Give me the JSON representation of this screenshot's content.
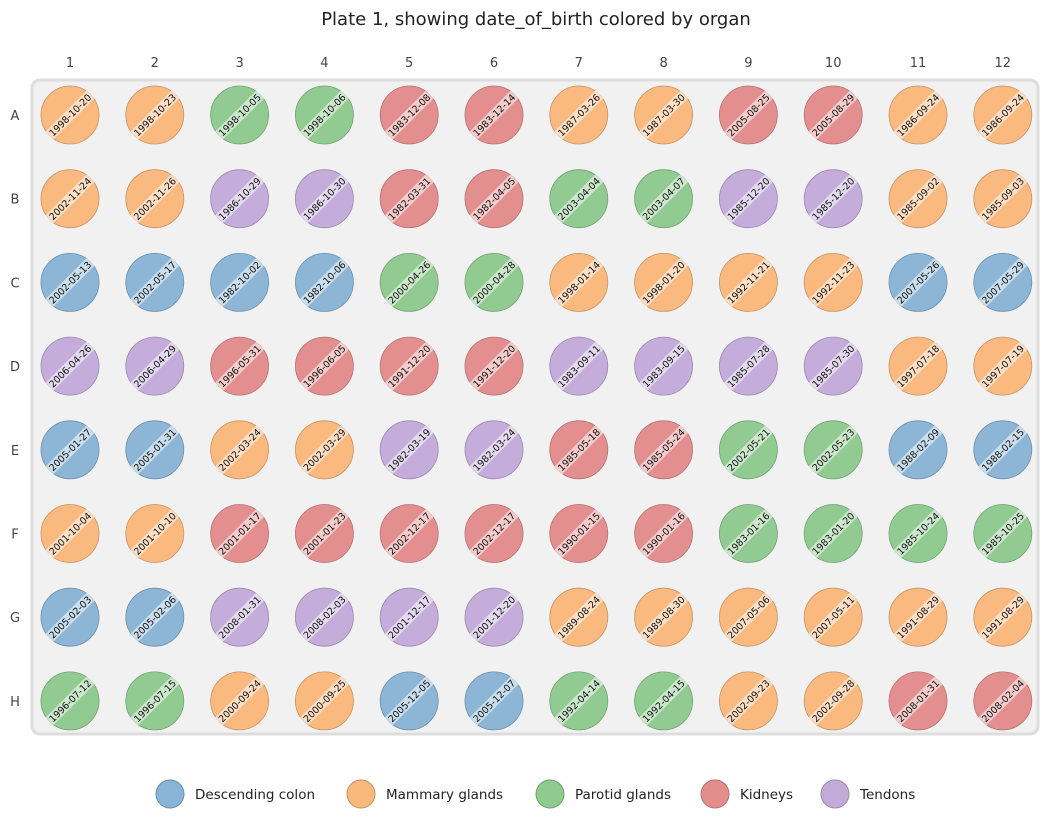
{
  "chart_data": {
    "type": "plate-map",
    "title": "Plate 1, showing date_of_birth colored by organ",
    "columns": [
      "1",
      "2",
      "3",
      "4",
      "5",
      "6",
      "7",
      "8",
      "9",
      "10",
      "11",
      "12"
    ],
    "rows": [
      "A",
      "B",
      "C",
      "D",
      "E",
      "F",
      "G",
      "H"
    ],
    "legend_placement": "bottom",
    "categories": [
      {
        "name": "Descending colon",
        "color": "#8ab4d5"
      },
      {
        "name": "Mammary glands",
        "color": "#f9b87c"
      },
      {
        "name": "Parotid glands",
        "color": "#8fca8f"
      },
      {
        "name": "Kidneys",
        "color": "#e38d8d"
      },
      {
        "name": "Tendons",
        "color": "#c3abd9"
      }
    ],
    "wells": [
      [
        [
          "Mammary glands",
          "1998-10-20"
        ],
        [
          "Mammary glands",
          "1998-10-23"
        ],
        [
          "Parotid glands",
          "1998-10-05"
        ],
        [
          "Parotid glands",
          "1998-10-06"
        ],
        [
          "Kidneys",
          "1983-12-08"
        ],
        [
          "Kidneys",
          "1983-12-14"
        ],
        [
          "Mammary glands",
          "1987-03-26"
        ],
        [
          "Mammary glands",
          "1987-03-30"
        ],
        [
          "Kidneys",
          "2005-08-25"
        ],
        [
          "Kidneys",
          "2005-08-29"
        ],
        [
          "Mammary glands",
          "1986-09-24"
        ],
        [
          "Mammary glands",
          "1986-09-24"
        ]
      ],
      [
        [
          "Mammary glands",
          "2002-11-24"
        ],
        [
          "Mammary glands",
          "2002-11-26"
        ],
        [
          "Tendons",
          "1986-10-29"
        ],
        [
          "Tendons",
          "1986-10-30"
        ],
        [
          "Kidneys",
          "1982-03-31"
        ],
        [
          "Kidneys",
          "1982-04-05"
        ],
        [
          "Parotid glands",
          "2003-04-04"
        ],
        [
          "Parotid glands",
          "2003-04-07"
        ],
        [
          "Tendons",
          "1985-12-20"
        ],
        [
          "Tendons",
          "1985-12-20"
        ],
        [
          "Mammary glands",
          "1985-09-02"
        ],
        [
          "Mammary glands",
          "1985-09-03"
        ]
      ],
      [
        [
          "Descending colon",
          "2002-05-13"
        ],
        [
          "Descending colon",
          "2002-05-17"
        ],
        [
          "Descending colon",
          "1982-10-02"
        ],
        [
          "Descending colon",
          "1982-10-06"
        ],
        [
          "Parotid glands",
          "2000-04-26"
        ],
        [
          "Parotid glands",
          "2000-04-28"
        ],
        [
          "Mammary glands",
          "1998-01-14"
        ],
        [
          "Mammary glands",
          "1998-01-20"
        ],
        [
          "Mammary glands",
          "1992-11-21"
        ],
        [
          "Mammary glands",
          "1992-11-23"
        ],
        [
          "Descending colon",
          "2007-05-26"
        ],
        [
          "Descending colon",
          "2007-05-29"
        ]
      ],
      [
        [
          "Tendons",
          "2006-04-26"
        ],
        [
          "Tendons",
          "2006-04-29"
        ],
        [
          "Kidneys",
          "1996-05-31"
        ],
        [
          "Kidneys",
          "1996-06-05"
        ],
        [
          "Kidneys",
          "1991-12-20"
        ],
        [
          "Kidneys",
          "1991-12-20"
        ],
        [
          "Tendons",
          "1983-09-11"
        ],
        [
          "Tendons",
          "1983-09-15"
        ],
        [
          "Tendons",
          "1985-07-28"
        ],
        [
          "Tendons",
          "1985-07-30"
        ],
        [
          "Mammary glands",
          "1997-07-18"
        ],
        [
          "Mammary glands",
          "1997-07-19"
        ]
      ],
      [
        [
          "Descending colon",
          "2005-01-27"
        ],
        [
          "Descending colon",
          "2005-01-31"
        ],
        [
          "Mammary glands",
          "2002-03-24"
        ],
        [
          "Mammary glands",
          "2002-03-29"
        ],
        [
          "Tendons",
          "1982-03-19"
        ],
        [
          "Tendons",
          "1982-03-24"
        ],
        [
          "Kidneys",
          "1985-05-18"
        ],
        [
          "Kidneys",
          "1985-05-24"
        ],
        [
          "Parotid glands",
          "2002-05-21"
        ],
        [
          "Parotid glands",
          "2002-05-23"
        ],
        [
          "Descending colon",
          "1988-02-09"
        ],
        [
          "Descending colon",
          "1988-02-15"
        ]
      ],
      [
        [
          "Mammary glands",
          "2001-10-04"
        ],
        [
          "Mammary glands",
          "2001-10-10"
        ],
        [
          "Kidneys",
          "2001-01-17"
        ],
        [
          "Kidneys",
          "2001-01-23"
        ],
        [
          "Kidneys",
          "2002-12-17"
        ],
        [
          "Kidneys",
          "2002-12-17"
        ],
        [
          "Kidneys",
          "1990-01-15"
        ],
        [
          "Kidneys",
          "1990-01-16"
        ],
        [
          "Parotid glands",
          "1983-01-16"
        ],
        [
          "Parotid glands",
          "1983-01-20"
        ],
        [
          "Parotid glands",
          "1985-10-24"
        ],
        [
          "Parotid glands",
          "1985-10-25"
        ]
      ],
      [
        [
          "Descending colon",
          "2005-02-03"
        ],
        [
          "Descending colon",
          "2005-02-06"
        ],
        [
          "Tendons",
          "2008-01-31"
        ],
        [
          "Tendons",
          "2008-02-03"
        ],
        [
          "Tendons",
          "2001-12-17"
        ],
        [
          "Tendons",
          "2001-12-20"
        ],
        [
          "Mammary glands",
          "1989-08-24"
        ],
        [
          "Mammary glands",
          "1989-08-30"
        ],
        [
          "Mammary glands",
          "2007-05-06"
        ],
        [
          "Mammary glands",
          "2007-05-11"
        ],
        [
          "Mammary glands",
          "1991-08-29"
        ],
        [
          "Mammary glands",
          "1991-08-29"
        ]
      ],
      [
        [
          "Parotid glands",
          "1996-07-12"
        ],
        [
          "Parotid glands",
          "1996-07-15"
        ],
        [
          "Mammary glands",
          "2000-09-24"
        ],
        [
          "Mammary glands",
          "2000-09-25"
        ],
        [
          "Descending colon",
          "2005-12-05"
        ],
        [
          "Descending colon",
          "2005-12-07"
        ],
        [
          "Parotid glands",
          "1992-04-14"
        ],
        [
          "Parotid glands",
          "1992-04-15"
        ],
        [
          "Mammary glands",
          "2002-09-23"
        ],
        [
          "Mammary glands",
          "2002-09-28"
        ],
        [
          "Kidneys",
          "2008-01-31"
        ],
        [
          "Kidneys",
          "2008-02-04"
        ]
      ]
    ]
  }
}
